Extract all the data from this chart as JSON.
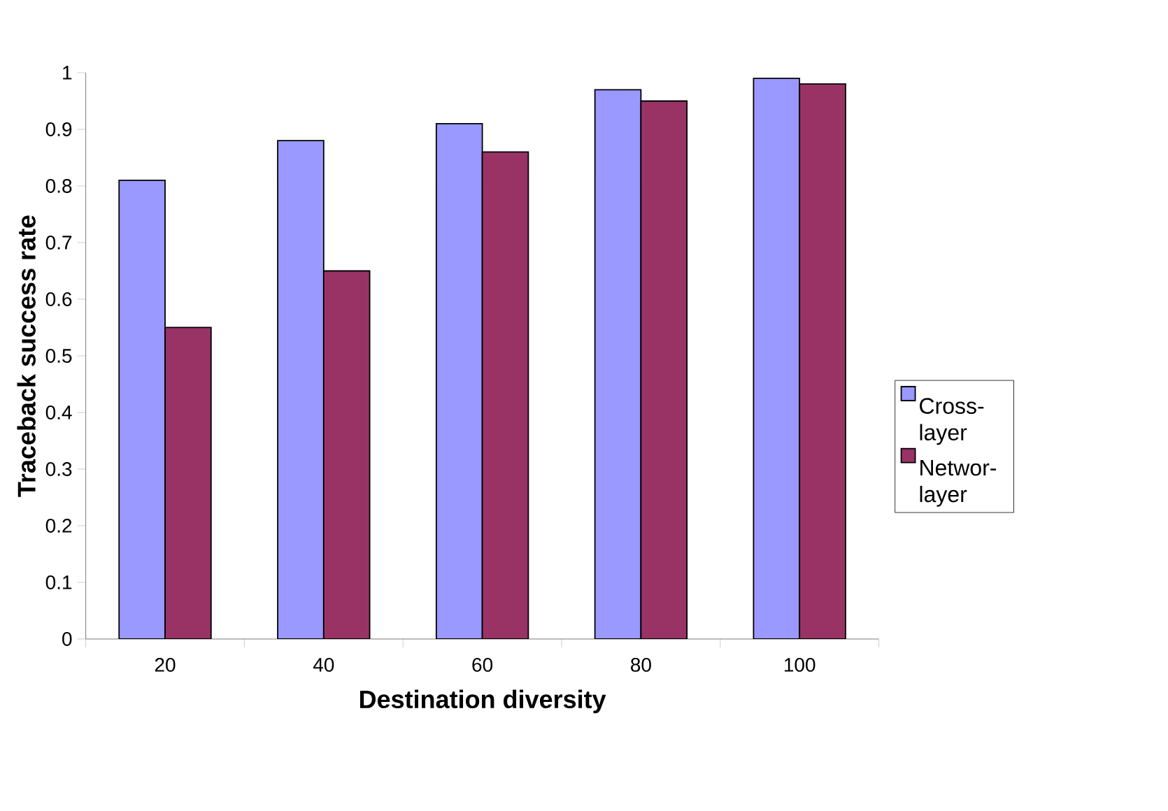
{
  "chart_data": {
    "type": "bar",
    "xlabel": "Destination diversity",
    "ylabel": "Traceback success rate",
    "categories": [
      "20",
      "40",
      "60",
      "80",
      "100"
    ],
    "series": [
      {
        "name": "Cross-layer",
        "color": "#9999ff",
        "values": [
          0.81,
          0.88,
          0.91,
          0.97,
          0.99
        ]
      },
      {
        "name": "Networ-layer",
        "color": "#993366",
        "values": [
          0.55,
          0.65,
          0.86,
          0.95,
          0.98
        ]
      }
    ],
    "ylim": [
      0,
      1
    ],
    "yticks": [
      0,
      0.1,
      0.2,
      0.3,
      0.4,
      0.5,
      0.6,
      0.7,
      0.8,
      0.9,
      1
    ],
    "grid": false,
    "legend": "right"
  }
}
